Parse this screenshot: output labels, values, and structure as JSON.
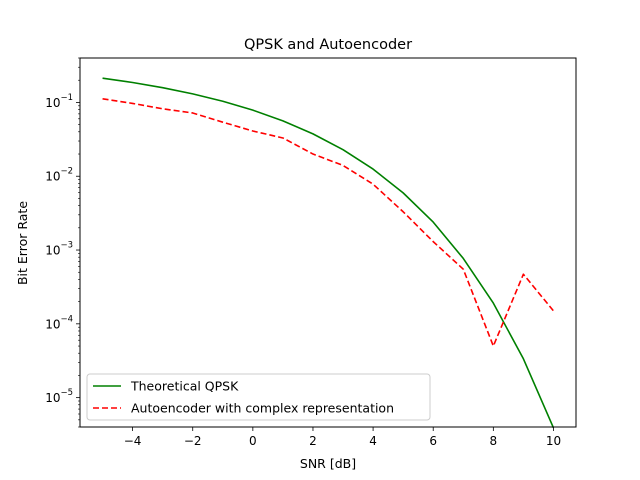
{
  "chart_data": {
    "type": "line",
    "title": "QPSK and Autoencoder",
    "xlabel": "SNR [dB]",
    "ylabel": "Bit Error Rate",
    "yscale": "log",
    "xlim": [
      -5.75,
      10.75
    ],
    "ylim": [
      4e-06,
      0.4
    ],
    "grid": false,
    "legend_position": "lower-left",
    "xticks": [
      {
        "value": -4,
        "label": "−4"
      },
      {
        "value": -2,
        "label": "−2"
      },
      {
        "value": 0,
        "label": "0"
      },
      {
        "value": 2,
        "label": "2"
      },
      {
        "value": 4,
        "label": "4"
      },
      {
        "value": 6,
        "label": "6"
      },
      {
        "value": 8,
        "label": "8"
      },
      {
        "value": 10,
        "label": "10"
      }
    ],
    "yticks": [
      {
        "value": 1e-05,
        "base": "10",
        "exp": "−5"
      },
      {
        "value": 0.0001,
        "base": "10",
        "exp": "−4"
      },
      {
        "value": 0.001,
        "base": "10",
        "exp": "−3"
      },
      {
        "value": 0.01,
        "base": "10",
        "exp": "−2"
      },
      {
        "value": 0.1,
        "base": "10",
        "exp": "−1"
      }
    ],
    "series": [
      {
        "name": "Theoretical QPSK",
        "color": "#008000",
        "dash": "solid",
        "x": [
          -5,
          -4,
          -3,
          -2,
          -1,
          0,
          1,
          2,
          3,
          4,
          5,
          6,
          7,
          8,
          9,
          10
        ],
        "y": [
          0.2132,
          0.1861,
          0.1584,
          0.1306,
          0.1038,
          0.0786,
          0.0563,
          0.0375,
          0.0229,
          0.0125,
          0.00595,
          0.00239,
          0.00077,
          0.000191,
          3.36e-05,
          3.9e-06
        ]
      },
      {
        "name": "Autoencoder with complex representation",
        "color": "#ff0000",
        "dash": "dashed",
        "x": [
          -5,
          -4,
          -3,
          -2,
          -1,
          0,
          1,
          2,
          3,
          4,
          5,
          6,
          7,
          8,
          9,
          10
        ],
        "y": [
          0.112,
          0.097,
          0.082,
          0.072,
          0.054,
          0.041,
          0.033,
          0.02,
          0.014,
          0.0078,
          0.0033,
          0.0013,
          0.00055,
          5e-05,
          0.00047,
          0.00015
        ]
      }
    ]
  }
}
